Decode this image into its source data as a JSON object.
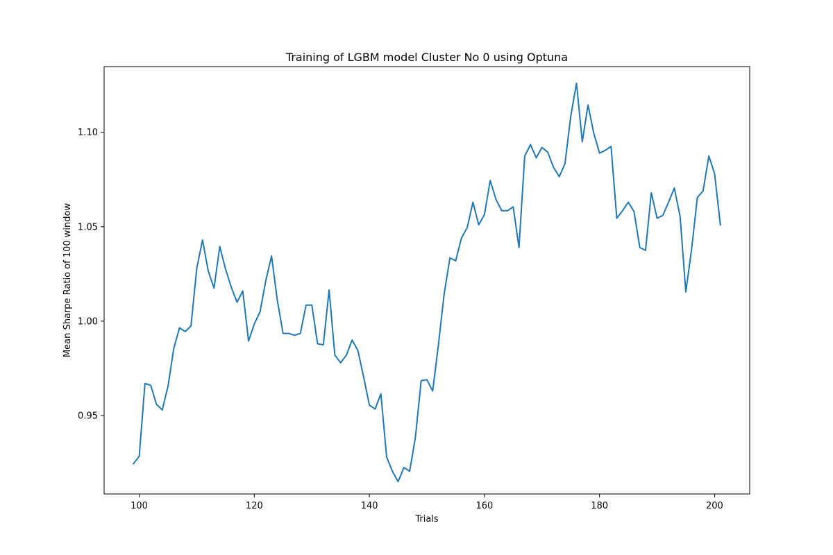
{
  "chart_data": {
    "type": "line",
    "title": "Training of LGBM model Cluster No 0 using Optuna",
    "xlabel": "Trials",
    "ylabel": "Mean Sharpe Ratio of 100 window",
    "xlim": [
      93.9,
      206.1
    ],
    "ylim": [
      0.9085,
      1.1348
    ],
    "xticks": [
      100,
      120,
      140,
      160,
      180,
      200
    ],
    "xtick_labels": [
      "100",
      "120",
      "140",
      "160",
      "180",
      "200"
    ],
    "yticks": [
      0.95,
      1.0,
      1.05,
      1.1
    ],
    "ytick_labels": [
      "0.95",
      "1.00",
      "1.05",
      "1.10"
    ],
    "grid": false,
    "series": [
      {
        "color": "#1f77b4",
        "x": [
          99,
          100,
          101,
          102,
          103,
          104,
          105,
          106,
          107,
          108,
          109,
          110,
          111,
          112,
          113,
          114,
          115,
          116,
          117,
          118,
          119,
          120,
          121,
          122,
          123,
          124,
          125,
          126,
          127,
          128,
          129,
          130,
          131,
          132,
          133,
          134,
          135,
          136,
          137,
          138,
          139,
          140,
          141,
          142,
          143,
          144,
          145,
          146,
          147,
          148,
          149,
          150,
          151,
          152,
          153,
          154,
          155,
          156,
          157,
          158,
          159,
          160,
          161,
          162,
          163,
          164,
          165,
          166,
          167,
          168,
          169,
          170,
          171,
          172,
          173,
          174,
          175,
          176,
          177,
          178,
          179,
          180,
          181,
          182,
          183,
          184,
          185,
          186,
          187,
          188,
          189,
          190,
          191,
          192,
          193,
          194,
          195,
          196,
          197,
          198,
          199,
          200,
          201
        ],
        "y": [
          0.9245,
          0.9285,
          0.967,
          0.966,
          0.956,
          0.953,
          0.9655,
          0.9855,
          0.9965,
          0.9945,
          0.9975,
          1.028,
          1.043,
          1.0265,
          1.0175,
          1.0395,
          1.0275,
          1.018,
          1.01,
          1.016,
          0.9895,
          0.9985,
          1.005,
          1.0215,
          1.0345,
          1.011,
          0.9935,
          0.9935,
          0.9925,
          0.9935,
          1.0085,
          1.0085,
          0.988,
          0.9875,
          1.0165,
          0.982,
          0.978,
          0.982,
          0.99,
          0.9845,
          0.9705,
          0.9555,
          0.9535,
          0.9615,
          0.928,
          0.9205,
          0.915,
          0.9225,
          0.9205,
          0.9385,
          0.9685,
          0.969,
          0.963,
          0.9875,
          1.0145,
          1.0335,
          1.032,
          1.044,
          1.0495,
          1.063,
          1.051,
          1.0565,
          1.0745,
          1.0645,
          1.0585,
          1.0585,
          1.0605,
          1.039,
          1.0875,
          1.0935,
          1.0865,
          1.092,
          1.0895,
          1.0815,
          1.0765,
          1.0835,
          1.1085,
          1.126,
          1.095,
          1.1145,
          1.0995,
          1.089,
          1.0905,
          1.0925,
          1.0545,
          1.0585,
          1.063,
          1.058,
          1.039,
          1.0375,
          1.068,
          1.0545,
          1.056,
          1.063,
          1.0705,
          1.0555,
          1.0155,
          1.038,
          1.0655,
          1.069,
          1.0875,
          1.078,
          1.051
        ]
      }
    ]
  }
}
